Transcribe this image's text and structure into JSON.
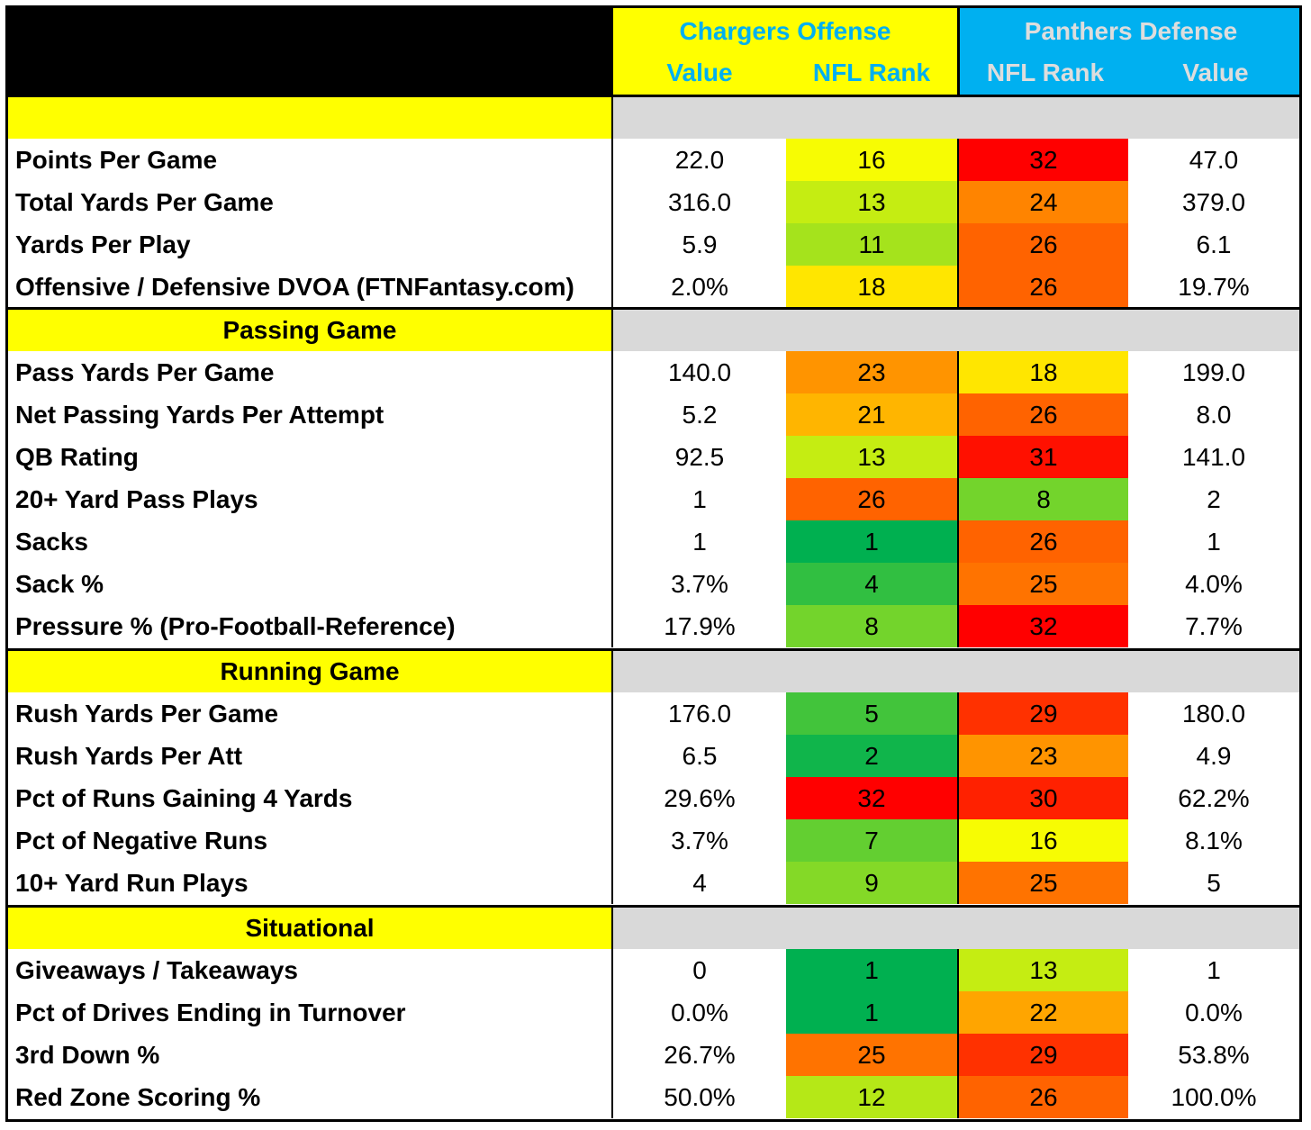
{
  "header": {
    "offense_title": "Chargers Offense",
    "defense_title": "Panthers Defense",
    "col_value": "Value",
    "col_rank": "NFL Rank"
  },
  "colors": {
    "header_bg_left": "#000000",
    "offense_header_bg": "#ffff00",
    "offense_header_text": "#00b0f0",
    "defense_header_bg": "#00b0f0",
    "defense_header_text": "#dddddd",
    "section_bg": "#ffff00",
    "section_fill": "#d9d9d9"
  },
  "sections": [
    {
      "title": "",
      "rows": [
        {
          "label": "Points Per Game",
          "off_value": "22.0",
          "off_rank": "16",
          "def_rank": "32",
          "def_value": "47.0"
        },
        {
          "label": "Total Yards Per Game",
          "off_value": "316.0",
          "off_rank": "13",
          "def_rank": "24",
          "def_value": "379.0"
        },
        {
          "label": "Yards Per Play",
          "off_value": "5.9",
          "off_rank": "11",
          "def_rank": "26",
          "def_value": "6.1"
        },
        {
          "label": "Offensive / Defensive DVOA (FTNFantasy.com)",
          "off_value": "2.0%",
          "off_rank": "18",
          "def_rank": "26",
          "def_value": "19.7%"
        }
      ]
    },
    {
      "title": "Passing Game",
      "rows": [
        {
          "label": "Pass Yards Per Game",
          "off_value": "140.0",
          "off_rank": "23",
          "def_rank": "18",
          "def_value": "199.0"
        },
        {
          "label": "Net Passing Yards Per Attempt",
          "off_value": "5.2",
          "off_rank": "21",
          "def_rank": "26",
          "def_value": "8.0"
        },
        {
          "label": "QB Rating",
          "off_value": "92.5",
          "off_rank": "13",
          "def_rank": "31",
          "def_value": "141.0"
        },
        {
          "label": "20+ Yard Pass Plays",
          "off_value": "1",
          "off_rank": "26",
          "def_rank": "8",
          "def_value": "2"
        },
        {
          "label": "Sacks",
          "off_value": "1",
          "off_rank": "1",
          "def_rank": "26",
          "def_value": "1"
        },
        {
          "label": "Sack %",
          "off_value": "3.7%",
          "off_rank": "4",
          "def_rank": "25",
          "def_value": "4.0%"
        },
        {
          "label": "Pressure % (Pro-Football-Reference)",
          "off_value": "17.9%",
          "off_rank": "8",
          "def_rank": "32",
          "def_value": "7.7%"
        }
      ]
    },
    {
      "title": "Running Game",
      "rows": [
        {
          "label": "Rush Yards Per Game",
          "off_value": "176.0",
          "off_rank": "5",
          "def_rank": "29",
          "def_value": "180.0"
        },
        {
          "label": "Rush Yards Per Att",
          "off_value": "6.5",
          "off_rank": "2",
          "def_rank": "23",
          "def_value": "4.9"
        },
        {
          "label": "Pct of Runs Gaining 4 Yards",
          "off_value": "29.6%",
          "off_rank": "32",
          "def_rank": "30",
          "def_value": "62.2%"
        },
        {
          "label": "Pct of Negative Runs",
          "off_value": "3.7%",
          "off_rank": "7",
          "def_rank": "16",
          "def_value": "8.1%"
        },
        {
          "label": "10+ Yard Run Plays",
          "off_value": "4",
          "off_rank": "9",
          "def_rank": "25",
          "def_value": "5"
        }
      ]
    },
    {
      "title": "Situational",
      "rows": [
        {
          "label": "Giveaways / Takeaways",
          "off_value": "0",
          "off_rank": "1",
          "def_rank": "13",
          "def_value": "1"
        },
        {
          "label": "Pct of Drives Ending in Turnover",
          "off_value": "0.0%",
          "off_rank": "1",
          "def_rank": "22",
          "def_value": "0.0%"
        },
        {
          "label": "3rd Down %",
          "off_value": "26.7%",
          "off_rank": "25",
          "def_rank": "29",
          "def_value": "53.8%"
        },
        {
          "label": "Red Zone Scoring %",
          "off_value": "50.0%",
          "off_rank": "12",
          "def_rank": "26",
          "def_value": "100.0%"
        }
      ]
    }
  ]
}
